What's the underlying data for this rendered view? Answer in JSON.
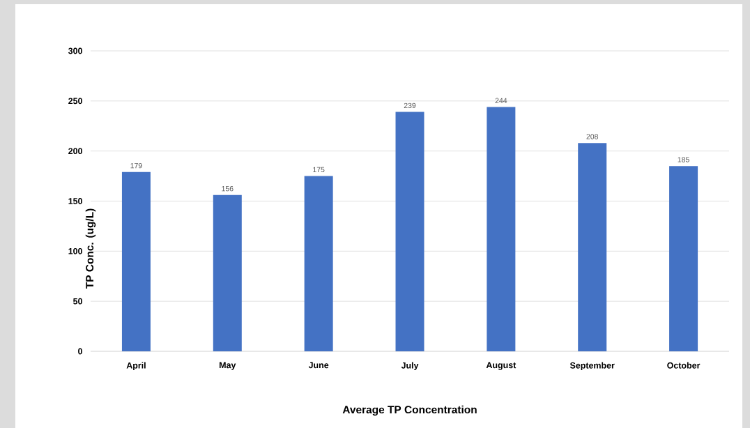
{
  "chart_data": {
    "type": "bar",
    "xlabel": "Average TP Concentration",
    "ylabel": "TP Conc. (ug/L)",
    "categories": [
      "April",
      "May",
      "June",
      "July",
      "August",
      "September",
      "October"
    ],
    "values": [
      179,
      156,
      175,
      239,
      244,
      208,
      185
    ],
    "color": "#4472c4",
    "ylim": [
      0,
      300
    ],
    "yticks": [
      0,
      50,
      100,
      150,
      200,
      250,
      300
    ],
    "grid": "y",
    "data_labels": true
  }
}
